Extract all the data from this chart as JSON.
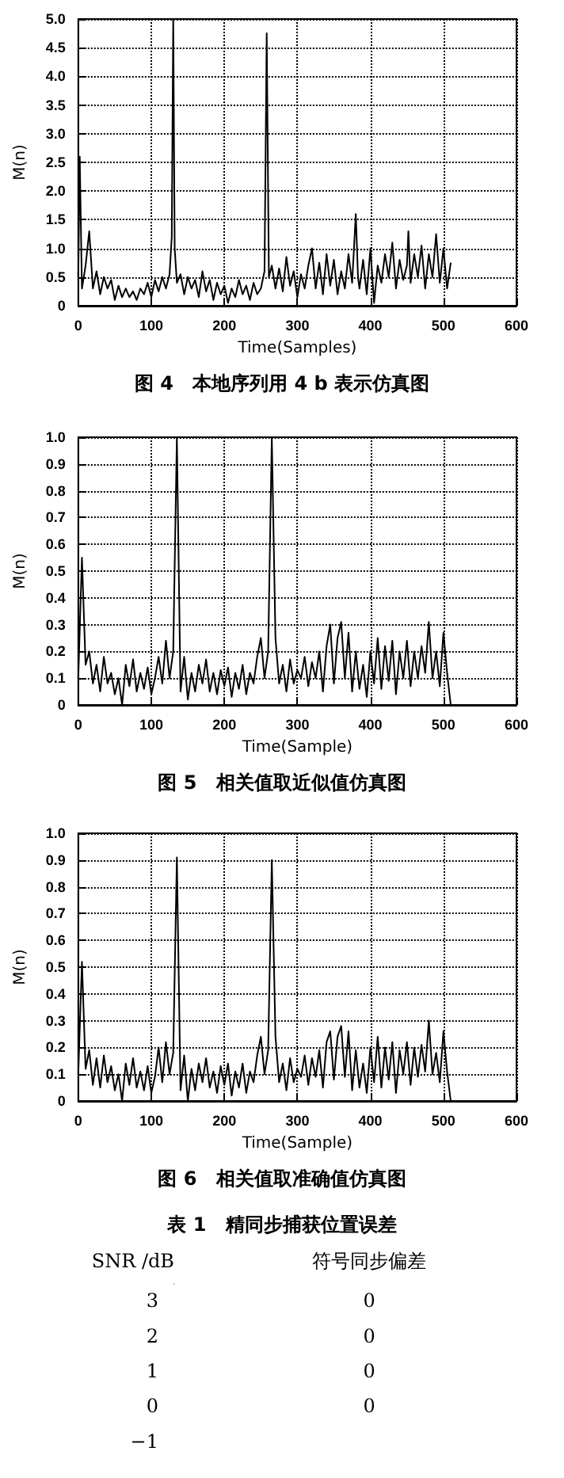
{
  "chart_data": [
    {
      "type": "line",
      "title": "图 4　本地序列用 4 b 表示仿真图",
      "xlabel": "Time(Samples)",
      "ylabel": "M(n)",
      "xlim": [
        0,
        600
      ],
      "xticks": [
        0,
        100,
        200,
        300,
        400,
        500,
        600
      ],
      "ylim": [
        0,
        5
      ],
      "yticks": [
        0,
        {
          "value": 0.5,
          "label": "0.5"
        },
        {
          "value": 1,
          "label": "1.0"
        },
        {
          "value": 1.5,
          "label": "1.5"
        },
        {
          "value": 2,
          "label": "2.0"
        },
        {
          "value": 2.5,
          "label": "2.5"
        },
        {
          "value": 3,
          "label": "3.0"
        },
        {
          "value": 3.5,
          "label": "3.5"
        },
        {
          "value": 4,
          "label": "4.0"
        },
        {
          "value": 4.5,
          "label": "4.5"
        },
        {
          "value": 5,
          "label": "5.0"
        }
      ],
      "grid": true,
      "marker": "none",
      "line_style": "solid",
      "series": [
        {
          "color": "#000000",
          "x": [
            0,
            2,
            5,
            10,
            15,
            20,
            25,
            30,
            35,
            40,
            45,
            50,
            55,
            60,
            65,
            70,
            75,
            80,
            85,
            90,
            95,
            100,
            105,
            110,
            115,
            120,
            125,
            128,
            130,
            132,
            135,
            140,
            145,
            150,
            155,
            160,
            165,
            170,
            175,
            180,
            185,
            190,
            195,
            200,
            205,
            210,
            215,
            220,
            225,
            230,
            235,
            240,
            245,
            250,
            255,
            258,
            261,
            265,
            270,
            275,
            280,
            285,
            290,
            295,
            300,
            305,
            310,
            315,
            320,
            325,
            330,
            335,
            340,
            345,
            350,
            355,
            360,
            365,
            370,
            375,
            380,
            383,
            385,
            390,
            395,
            400,
            405,
            410,
            415,
            420,
            425,
            430,
            435,
            440,
            445,
            450,
            452,
            455,
            460,
            465,
            470,
            475,
            480,
            485,
            490,
            495,
            500,
            505,
            510
          ],
          "values": [
            0.5,
            2.6,
            0.3,
            0.7,
            1.3,
            0.3,
            0.6,
            0.2,
            0.5,
            0.3,
            0.45,
            0.1,
            0.35,
            0.15,
            0.3,
            0.15,
            0.25,
            0.1,
            0.3,
            0.2,
            0.4,
            0.15,
            0.45,
            0.25,
            0.5,
            0.3,
            0.55,
            1.2,
            5.0,
            1.0,
            0.4,
            0.55,
            0.2,
            0.5,
            0.3,
            0.45,
            0.15,
            0.6,
            0.25,
            0.45,
            0.1,
            0.4,
            0.2,
            0.35,
            0.05,
            0.3,
            0.15,
            0.45,
            0.2,
            0.35,
            0.1,
            0.4,
            0.2,
            0.3,
            0.6,
            4.75,
            0.5,
            0.7,
            0.3,
            0.65,
            0.25,
            0.85,
            0.35,
            0.6,
            0.15,
            0.55,
            0.3,
            0.7,
            1.0,
            0.3,
            0.75,
            0.2,
            0.9,
            0.35,
            0.8,
            0.2,
            0.6,
            0.3,
            0.9,
            0.4,
            1.6,
            0.5,
            0.3,
            0.8,
            0.2,
            1.0,
            0.05,
            0.7,
            0.4,
            0.9,
            0.5,
            1.1,
            0.3,
            0.8,
            0.45,
            0.7,
            1.3,
            0.4,
            0.9,
            0.5,
            1.05,
            0.3,
            0.9,
            0.5,
            1.25,
            0.4,
            1.0,
            0.3,
            0.75
          ]
        }
      ]
    },
    {
      "type": "line",
      "title": "图 5　相关值取近似值仿真图",
      "xlabel": "Time(Sample)",
      "ylabel": "M(n)",
      "xlim": [
        0,
        600
      ],
      "xticks": [
        0,
        100,
        200,
        300,
        400,
        500,
        600
      ],
      "ylim": [
        0,
        1
      ],
      "yticks": [
        0,
        0.1,
        0.2,
        0.3,
        0.4,
        0.5,
        0.6,
        0.7,
        0.8,
        0.9,
        {
          "value": 1,
          "label": "1.0"
        }
      ],
      "grid": true,
      "marker": "none",
      "line_style": "solid",
      "series": [
        {
          "color": "#000000",
          "x": [
            0,
            5,
            10,
            15,
            20,
            25,
            30,
            35,
            40,
            45,
            50,
            55,
            60,
            65,
            70,
            75,
            80,
            85,
            90,
            95,
            100,
            105,
            110,
            115,
            120,
            125,
            130,
            135,
            140,
            145,
            150,
            155,
            160,
            165,
            170,
            175,
            180,
            185,
            190,
            195,
            200,
            205,
            210,
            215,
            220,
            225,
            230,
            235,
            240,
            245,
            250,
            255,
            260,
            265,
            270,
            275,
            280,
            285,
            290,
            295,
            300,
            305,
            310,
            315,
            320,
            325,
            330,
            335,
            340,
            345,
            350,
            355,
            360,
            365,
            370,
            375,
            380,
            385,
            390,
            395,
            400,
            405,
            410,
            415,
            420,
            425,
            430,
            435,
            440,
            445,
            450,
            455,
            460,
            465,
            470,
            475,
            480,
            485,
            490,
            495,
            500,
            505,
            510
          ],
          "values": [
            0.1,
            0.55,
            0.15,
            0.2,
            0.08,
            0.15,
            0.05,
            0.18,
            0.08,
            0.12,
            0.04,
            0.1,
            0.0,
            0.15,
            0.07,
            0.17,
            0.05,
            0.12,
            0.06,
            0.14,
            0.04,
            0.1,
            0.18,
            0.08,
            0.24,
            0.1,
            0.2,
            1.0,
            0.05,
            0.18,
            0.02,
            0.12,
            0.05,
            0.15,
            0.08,
            0.17,
            0.05,
            0.12,
            0.04,
            0.13,
            0.07,
            0.14,
            0.03,
            0.12,
            0.06,
            0.15,
            0.04,
            0.12,
            0.08,
            0.18,
            0.25,
            0.1,
            0.2,
            1.0,
            0.25,
            0.08,
            0.15,
            0.05,
            0.17,
            0.08,
            0.13,
            0.1,
            0.18,
            0.07,
            0.16,
            0.1,
            0.2,
            0.05,
            0.22,
            0.3,
            0.08,
            0.25,
            0.31,
            0.1,
            0.27,
            0.05,
            0.2,
            0.06,
            0.15,
            0.03,
            0.2,
            0.08,
            0.25,
            0.06,
            0.22,
            0.09,
            0.24,
            0.04,
            0.2,
            0.1,
            0.24,
            0.07,
            0.2,
            0.1,
            0.22,
            0.12,
            0.31,
            0.1,
            0.2,
            0.07,
            0.27,
            0.12,
            0.0
          ]
        }
      ]
    },
    {
      "type": "line",
      "title": "图 6　相关值取准确值仿真图",
      "xlabel": "Time(Sample)",
      "ylabel": "M(n)",
      "xlim": [
        0,
        600
      ],
      "xticks": [
        0,
        100,
        200,
        300,
        400,
        500,
        600
      ],
      "ylim": [
        0,
        1
      ],
      "yticks": [
        0,
        0.1,
        0.2,
        0.3,
        0.4,
        0.5,
        0.6,
        0.7,
        0.8,
        0.9,
        {
          "value": 1,
          "label": "1.0"
        }
      ],
      "grid": true,
      "marker": "none",
      "line_style": "solid",
      "series": [
        {
          "color": "#000000",
          "x": [
            0,
            5,
            10,
            15,
            20,
            25,
            30,
            35,
            40,
            45,
            50,
            55,
            60,
            65,
            70,
            75,
            80,
            85,
            90,
            95,
            100,
            105,
            110,
            115,
            120,
            125,
            130,
            135,
            140,
            145,
            150,
            155,
            160,
            165,
            170,
            175,
            180,
            185,
            190,
            195,
            200,
            205,
            210,
            215,
            220,
            225,
            230,
            235,
            240,
            245,
            250,
            255,
            260,
            265,
            270,
            275,
            280,
            285,
            290,
            295,
            300,
            305,
            310,
            315,
            320,
            325,
            330,
            335,
            340,
            345,
            350,
            355,
            360,
            365,
            370,
            375,
            380,
            385,
            390,
            395,
            400,
            405,
            410,
            415,
            420,
            425,
            430,
            435,
            440,
            445,
            450,
            455,
            460,
            465,
            470,
            475,
            480,
            485,
            490,
            495,
            500,
            505,
            510
          ],
          "values": [
            0.1,
            0.52,
            0.12,
            0.19,
            0.06,
            0.16,
            0.05,
            0.17,
            0.07,
            0.13,
            0.04,
            0.1,
            0.0,
            0.14,
            0.06,
            0.16,
            0.05,
            0.11,
            0.04,
            0.13,
            0.03,
            0.09,
            0.2,
            0.07,
            0.22,
            0.1,
            0.18,
            0.91,
            0.04,
            0.17,
            0.0,
            0.12,
            0.04,
            0.14,
            0.07,
            0.16,
            0.05,
            0.11,
            0.03,
            0.13,
            0.06,
            0.14,
            0.02,
            0.11,
            0.05,
            0.14,
            0.03,
            0.11,
            0.07,
            0.17,
            0.24,
            0.1,
            0.19,
            0.9,
            0.24,
            0.07,
            0.14,
            0.04,
            0.16,
            0.07,
            0.12,
            0.09,
            0.17,
            0.06,
            0.16,
            0.09,
            0.19,
            0.05,
            0.22,
            0.26,
            0.08,
            0.24,
            0.28,
            0.09,
            0.26,
            0.04,
            0.19,
            0.05,
            0.14,
            0.03,
            0.2,
            0.07,
            0.24,
            0.05,
            0.2,
            0.08,
            0.22,
            0.03,
            0.19,
            0.1,
            0.22,
            0.06,
            0.2,
            0.09,
            0.21,
            0.11,
            0.3,
            0.1,
            0.18,
            0.07,
            0.26,
            0.11,
            0.0
          ]
        }
      ]
    },
    {
      "type": "heatmap",
      "title": "表 1　精同步捕获位置误差",
      "ylabel": "SNR /dB",
      "data_labels": true,
      "categories": [
        "符号同步偏差"
      ],
      "y_categories": [
        "3",
        "2",
        "1",
        "0",
        "−1"
      ],
      "cells": [
        [
          0
        ],
        [
          0
        ],
        [
          0
        ],
        [
          0
        ],
        [
          null
        ]
      ]
    }
  ]
}
